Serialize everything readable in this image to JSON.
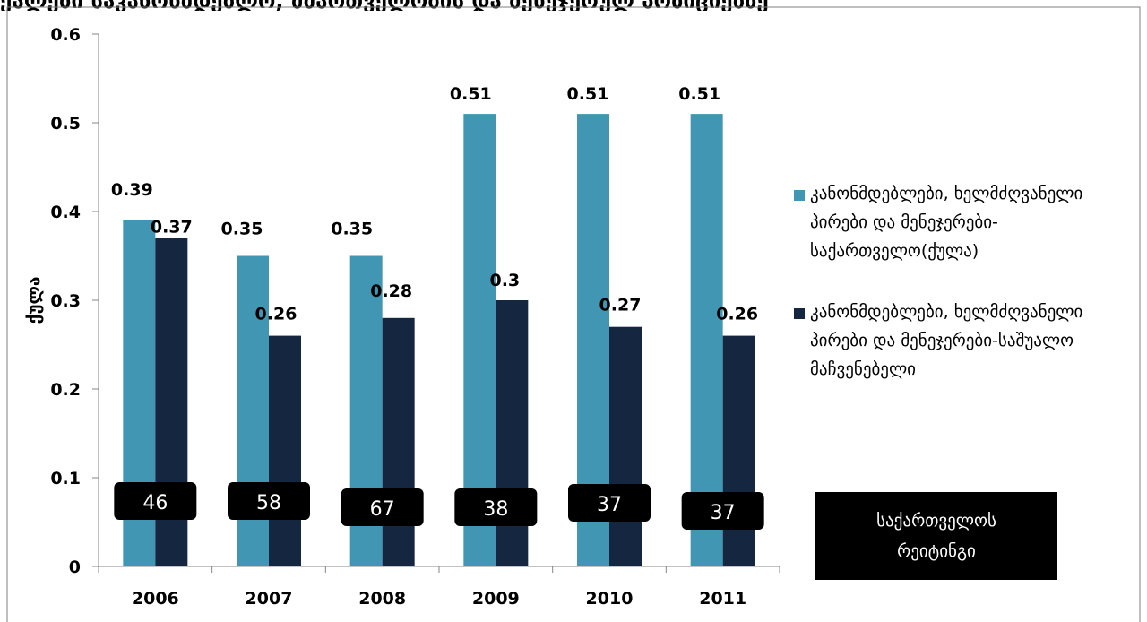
{
  "title": "ქალები საკანონმდებლო, მმართველობის და მენეჯერულ პოზიციებზე",
  "legend_box_label": "საქართველოს რეიტინგი",
  "chart_data": {
    "type": "bar",
    "categories": [
      "2006",
      "2007",
      "2008",
      "2009",
      "2010",
      "2011"
    ],
    "series": [
      {
        "name": "კანონმდებლები, ხელმძღვანელი პირები და მენეჯერები-საქართველო(ქულა)",
        "values": [
          0.39,
          0.35,
          0.35,
          0.51,
          0.51,
          0.51
        ],
        "color": "#4197b3"
      },
      {
        "name": "კანონმდებლები, ხელმძღვანელი პირები და მენეჯერები-საშუალო მაჩვენებელი",
        "values": [
          0.37,
          0.26,
          0.28,
          0.3,
          0.27,
          0.26
        ],
        "color": "#152641"
      }
    ],
    "data_labels": [
      [
        "0.39",
        "0.35",
        "0.35",
        "0.51",
        "0.51",
        "0.51"
      ],
      [
        "0.37",
        "0.26",
        "0.28",
        "0.3",
        "0.27",
        "0.26"
      ]
    ],
    "ranks": [
      "46",
      "58",
      "67",
      "38",
      "37",
      "37"
    ],
    "ylabel": "ქულა",
    "xlabel": "",
    "ylim": [
      0,
      0.6
    ],
    "yticks": [
      "0",
      "0.1",
      "0.2",
      "0.3",
      "0.4",
      "0.5",
      "0.6"
    ],
    "grid": false,
    "legend_position": "right"
  }
}
